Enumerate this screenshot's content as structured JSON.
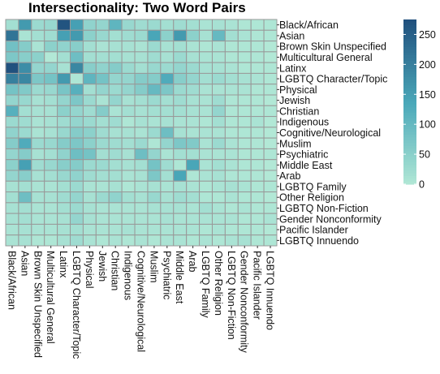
{
  "chart_data": {
    "type": "heatmap",
    "title": "Intersectionality: Two Word Pairs",
    "xlabel": "",
    "ylabel": "",
    "categories": [
      "Black/African",
      "Asian",
      "Brown Skin Unspecified",
      "Multicultural General",
      "Latinx",
      "LGBTQ Character/Topic",
      "Physical",
      "Jewish",
      "Christian",
      "Indigenous",
      "Cognitive/Neurological",
      "Muslim",
      "Psychiatric",
      "Middle East",
      "Arab",
      "LGBTQ Family",
      "Other Religion",
      "LGBTQ Non-Fiction",
      "Gender Nonconformity",
      "Pacific Islander",
      "LGBTQ Innuendo"
    ],
    "values": [
      [
        20,
        160,
        30,
        35,
        270,
        150,
        45,
        40,
        110,
        35,
        25,
        30,
        20,
        25,
        20,
        10,
        15,
        10,
        5,
        5,
        5
      ],
      [
        220,
        10,
        20,
        25,
        150,
        160,
        50,
        35,
        20,
        25,
        30,
        140,
        50,
        160,
        50,
        15,
        100,
        20,
        10,
        5,
        5
      ],
      [
        85,
        60,
        10,
        50,
        45,
        55,
        20,
        10,
        15,
        15,
        10,
        30,
        15,
        20,
        10,
        5,
        10,
        5,
        5,
        5,
        0
      ],
      [
        70,
        55,
        50,
        0,
        20,
        90,
        20,
        20,
        20,
        15,
        15,
        25,
        15,
        30,
        15,
        10,
        10,
        5,
        5,
        5,
        0
      ],
      [
        275,
        180,
        40,
        40,
        15,
        190,
        55,
        45,
        60,
        30,
        20,
        35,
        30,
        40,
        30,
        15,
        15,
        10,
        5,
        5,
        5
      ],
      [
        200,
        190,
        70,
        80,
        160,
        5,
        110,
        80,
        40,
        40,
        60,
        60,
        130,
        55,
        40,
        20,
        30,
        20,
        15,
        10,
        5
      ],
      [
        80,
        65,
        30,
        35,
        75,
        120,
        20,
        40,
        30,
        40,
        60,
        100,
        70,
        30,
        25,
        10,
        10,
        10,
        10,
        5,
        5
      ],
      [
        40,
        35,
        15,
        20,
        40,
        70,
        30,
        10,
        40,
        15,
        20,
        30,
        20,
        25,
        15,
        10,
        25,
        5,
        5,
        5,
        0
      ],
      [
        120,
        20,
        15,
        15,
        50,
        40,
        25,
        60,
        10,
        20,
        15,
        20,
        20,
        20,
        15,
        10,
        40,
        5,
        5,
        5,
        5
      ],
      [
        30,
        25,
        10,
        15,
        25,
        40,
        30,
        20,
        25,
        5,
        15,
        10,
        15,
        10,
        10,
        5,
        20,
        5,
        5,
        10,
        0
      ],
      [
        45,
        30,
        10,
        15,
        35,
        60,
        50,
        25,
        15,
        15,
        10,
        30,
        90,
        15,
        10,
        10,
        10,
        5,
        5,
        5,
        0
      ],
      [
        60,
        130,
        30,
        35,
        60,
        70,
        50,
        30,
        25,
        20,
        30,
        5,
        40,
        70,
        65,
        10,
        30,
        10,
        5,
        5,
        0
      ],
      [
        40,
        60,
        15,
        20,
        45,
        90,
        80,
        20,
        25,
        15,
        90,
        40,
        10,
        20,
        20,
        10,
        10,
        10,
        5,
        5,
        5
      ],
      [
        50,
        150,
        25,
        35,
        55,
        60,
        30,
        30,
        20,
        15,
        20,
        80,
        25,
        5,
        140,
        10,
        20,
        10,
        5,
        5,
        0
      ],
      [
        40,
        55,
        15,
        20,
        35,
        45,
        25,
        20,
        20,
        10,
        15,
        70,
        20,
        140,
        5,
        10,
        15,
        5,
        5,
        5,
        0
      ],
      [
        15,
        20,
        10,
        10,
        20,
        30,
        10,
        10,
        15,
        5,
        10,
        15,
        10,
        15,
        10,
        5,
        10,
        15,
        10,
        5,
        5
      ],
      [
        20,
        90,
        15,
        15,
        25,
        40,
        15,
        30,
        45,
        20,
        15,
        35,
        15,
        25,
        20,
        5,
        5,
        10,
        5,
        5,
        0
      ],
      [
        15,
        20,
        10,
        10,
        20,
        30,
        15,
        10,
        10,
        10,
        10,
        15,
        15,
        15,
        10,
        20,
        10,
        5,
        10,
        5,
        5
      ],
      [
        15,
        20,
        10,
        10,
        15,
        40,
        15,
        10,
        10,
        10,
        10,
        10,
        15,
        10,
        10,
        10,
        10,
        10,
        5,
        5,
        10
      ],
      [
        10,
        15,
        10,
        10,
        15,
        20,
        10,
        10,
        10,
        15,
        10,
        10,
        10,
        10,
        10,
        5,
        10,
        5,
        5,
        5,
        0
      ],
      [
        10,
        15,
        5,
        5,
        15,
        25,
        10,
        5,
        10,
        5,
        10,
        5,
        10,
        10,
        5,
        10,
        5,
        10,
        15,
        5,
        5
      ]
    ],
    "colorbar": {
      "min": 0,
      "max": 275,
      "ticks": [
        0,
        50,
        100,
        150,
        200,
        250
      ],
      "low_color": "#b2e8d6",
      "high_color": "#21517e"
    },
    "grid_color": "#999999",
    "legend": "right"
  }
}
